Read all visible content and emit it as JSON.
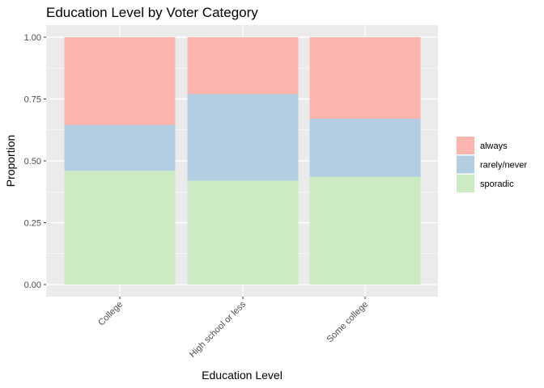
{
  "chart_data": {
    "type": "bar",
    "stacked": true,
    "title": "Education Level by Voter Category",
    "xlabel": "Education Level",
    "ylabel": "Proportion",
    "categories": [
      "College",
      "High school or less",
      "Some college"
    ],
    "series": [
      {
        "name": "sporadic",
        "color": "#CCEBC5",
        "values": [
          0.46,
          0.42,
          0.435
        ]
      },
      {
        "name": "rarely/never",
        "color": "#B3CDE3",
        "values": [
          0.185,
          0.35,
          0.235
        ]
      },
      {
        "name": "always",
        "color": "#FBB4AE",
        "values": [
          0.355,
          0.23,
          0.33
        ]
      }
    ],
    "ylim": [
      0,
      1
    ],
    "yticks": [
      "0.00",
      "0.25",
      "0.50",
      "0.75",
      "1.00"
    ],
    "yticks_values": [
      0,
      0.25,
      0.5,
      0.75,
      1
    ],
    "legend": {
      "position": "right",
      "order": [
        "always",
        "rarely/never",
        "sporadic"
      ]
    },
    "grid": true,
    "panel_background": "#EBEBEB"
  }
}
